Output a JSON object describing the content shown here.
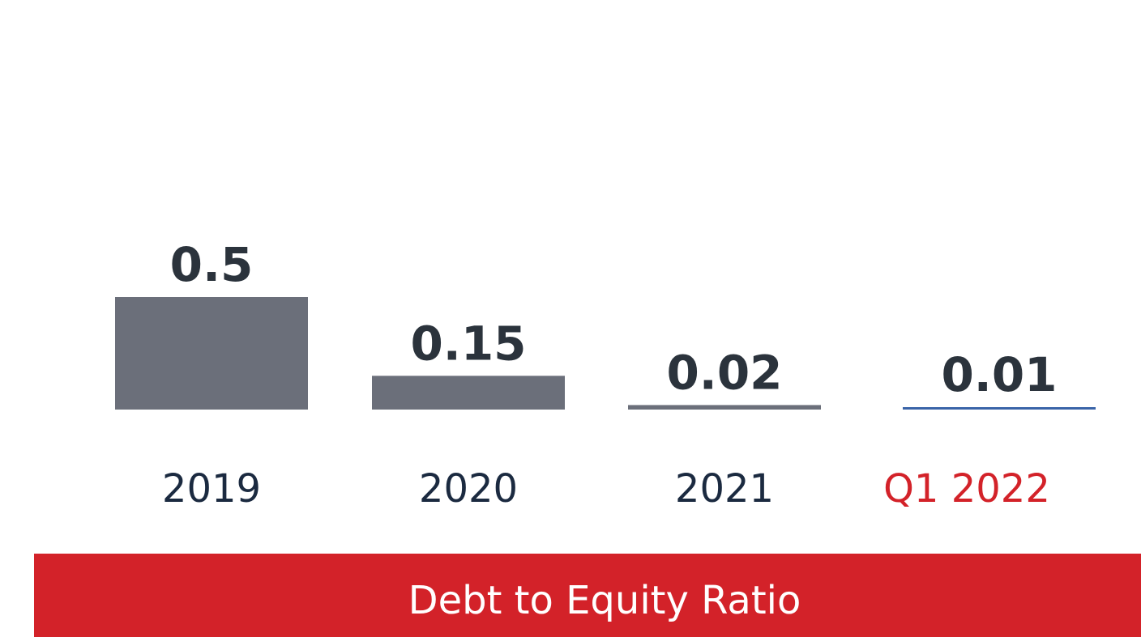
{
  "chart_data": {
    "type": "bar",
    "title": "Debt to Equity Ratio",
    "categories": [
      "2019",
      "2020",
      "2021",
      "Q1 2022"
    ],
    "values": [
      0.5,
      0.15,
      0.02,
      0.01
    ],
    "colors": [
      "#6b6f7a",
      "#6b6f7a",
      "#6b6f7a",
      "#3a64a8"
    ],
    "category_colors": [
      "#1b2a40",
      "#1b2a40",
      "#1b2a40",
      "#d32229"
    ],
    "title_background": "#d32229"
  }
}
